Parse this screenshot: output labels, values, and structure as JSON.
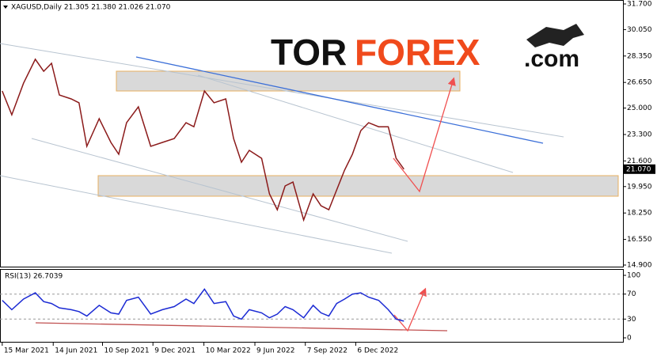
{
  "chart_data": [
    {
      "type": "line",
      "title": "XAGUSD,Daily  21.305 21.380 21.026 21.070",
      "x": [
        "2021-03-15",
        "2021-04-01",
        "2021-04-22",
        "2021-05-13",
        "2021-05-28",
        "2021-06-11",
        "2021-06-25",
        "2021-07-16",
        "2021-07-30",
        "2021-08-13",
        "2021-09-04",
        "2021-09-25",
        "2021-10-09",
        "2021-10-23",
        "2021-11-13",
        "2021-12-05",
        "2021-12-26",
        "2022-01-16",
        "2022-02-06",
        "2022-02-20",
        "2022-03-11",
        "2022-03-28",
        "2022-04-18",
        "2022-05-02",
        "2022-05-16",
        "2022-05-30",
        "2022-06-21",
        "2022-07-05",
        "2022-07-19",
        "2022-08-02",
        "2022-08-16",
        "2022-09-04",
        "2022-09-21",
        "2022-10-05",
        "2022-10-19",
        "2022-11-02",
        "2022-11-16",
        "2022-11-30",
        "2022-12-15",
        "2022-12-29",
        "2023-01-16",
        "2023-02-02",
        "2023-02-16",
        "2023-03-02"
      ],
      "series": [
        {
          "name": "XAGUSD",
          "color": "#8b1a1a",
          "values": [
            26.1,
            24.57,
            26.6,
            28.14,
            27.37,
            27.88,
            25.84,
            25.59,
            25.34,
            22.54,
            24.32,
            22.79,
            22.03,
            24.06,
            25.08,
            22.54,
            22.79,
            23.04,
            24.06,
            23.8,
            26.1,
            25.34,
            25.59,
            23.04,
            21.52,
            22.28,
            21.77,
            19.48,
            18.46,
            19.99,
            20.24,
            17.8,
            19.48,
            18.72,
            18.46,
            19.73,
            21.01,
            22.03,
            23.55,
            24.06,
            23.8,
            23.8,
            21.77,
            21.07
          ]
        }
      ],
      "last_price": {
        "value": 21.07,
        "label": "21.070"
      },
      "xlim": [
        "2021-03-11",
        "2024-03-27"
      ],
      "ylim": [
        14.9,
        31.7
      ],
      "yticks": [
        {
          "value": 31.7,
          "label": "31.700"
        },
        {
          "value": 30.05,
          "label": "30.050"
        },
        {
          "value": 28.35,
          "label": "28.350"
        },
        {
          "value": 26.65,
          "label": "26.650"
        },
        {
          "value": 25.0,
          "label": "25.000"
        },
        {
          "value": 23.3,
          "label": "23.300"
        },
        {
          "value": 21.6,
          "label": "21.600"
        },
        {
          "value": 19.95,
          "label": "19.950"
        },
        {
          "value": 18.25,
          "label": "18.250"
        },
        {
          "value": 16.55,
          "label": "16.550"
        },
        {
          "value": 14.9,
          "label": "14.900"
        }
      ]
    },
    {
      "type": "line",
      "title": "RSI(13) 26.7039",
      "x": [
        "2021-03-15",
        "2021-04-01",
        "2021-04-22",
        "2021-05-13",
        "2021-05-28",
        "2021-06-11",
        "2021-06-25",
        "2021-07-16",
        "2021-07-30",
        "2021-08-13",
        "2021-09-04",
        "2021-09-25",
        "2021-10-09",
        "2021-10-23",
        "2021-11-13",
        "2021-12-05",
        "2021-12-26",
        "2022-01-16",
        "2022-02-06",
        "2022-02-20",
        "2022-03-11",
        "2022-03-28",
        "2022-04-18",
        "2022-05-02",
        "2022-05-16",
        "2022-05-30",
        "2022-06-21",
        "2022-07-05",
        "2022-07-19",
        "2022-08-02",
        "2022-08-16",
        "2022-09-04",
        "2022-09-21",
        "2022-10-05",
        "2022-10-19",
        "2022-11-02",
        "2022-11-16",
        "2022-11-30",
        "2022-12-15",
        "2022-12-29",
        "2023-01-16",
        "2023-02-02",
        "2023-02-16",
        "2023-03-02"
      ],
      "series": [
        {
          "name": "RSI(13)",
          "color": "#1c2bd4",
          "values": [
            60,
            45,
            62,
            72,
            58,
            55,
            48,
            45,
            42,
            35,
            52,
            40,
            38,
            60,
            65,
            38,
            45,
            50,
            62,
            55,
            78,
            55,
            58,
            35,
            30,
            45,
            40,
            32,
            38,
            50,
            45,
            32,
            52,
            40,
            35,
            55,
            62,
            70,
            72,
            65,
            60,
            45,
            30,
            26.7039
          ]
        }
      ],
      "xlim": [
        "2021-03-11",
        "2024-03-27"
      ],
      "ylim": [
        0,
        100
      ],
      "yticks": [
        100,
        70,
        30,
        0
      ],
      "levels": [
        70,
        30
      ],
      "xticks": [
        {
          "value": "2021-03-15",
          "label": "15 Mar 2021"
        },
        {
          "value": "2021-06-14",
          "label": "14 Jun 2021"
        },
        {
          "value": "2021-09-10",
          "label": "10 Sep 2021"
        },
        {
          "value": "2021-12-09",
          "label": "9 Dec 2021"
        },
        {
          "value": "2022-03-10",
          "label": "10 Mar 2022"
        },
        {
          "value": "2022-06-09",
          "label": "9 Jun 2022"
        },
        {
          "value": "2022-09-07",
          "label": "7 Sep 2022"
        },
        {
          "value": "2022-12-06",
          "label": "6 Dec 2022"
        }
      ]
    }
  ],
  "watermark": {
    "part1": "TOR",
    "part2": "FOREX",
    "part3": ".com"
  }
}
